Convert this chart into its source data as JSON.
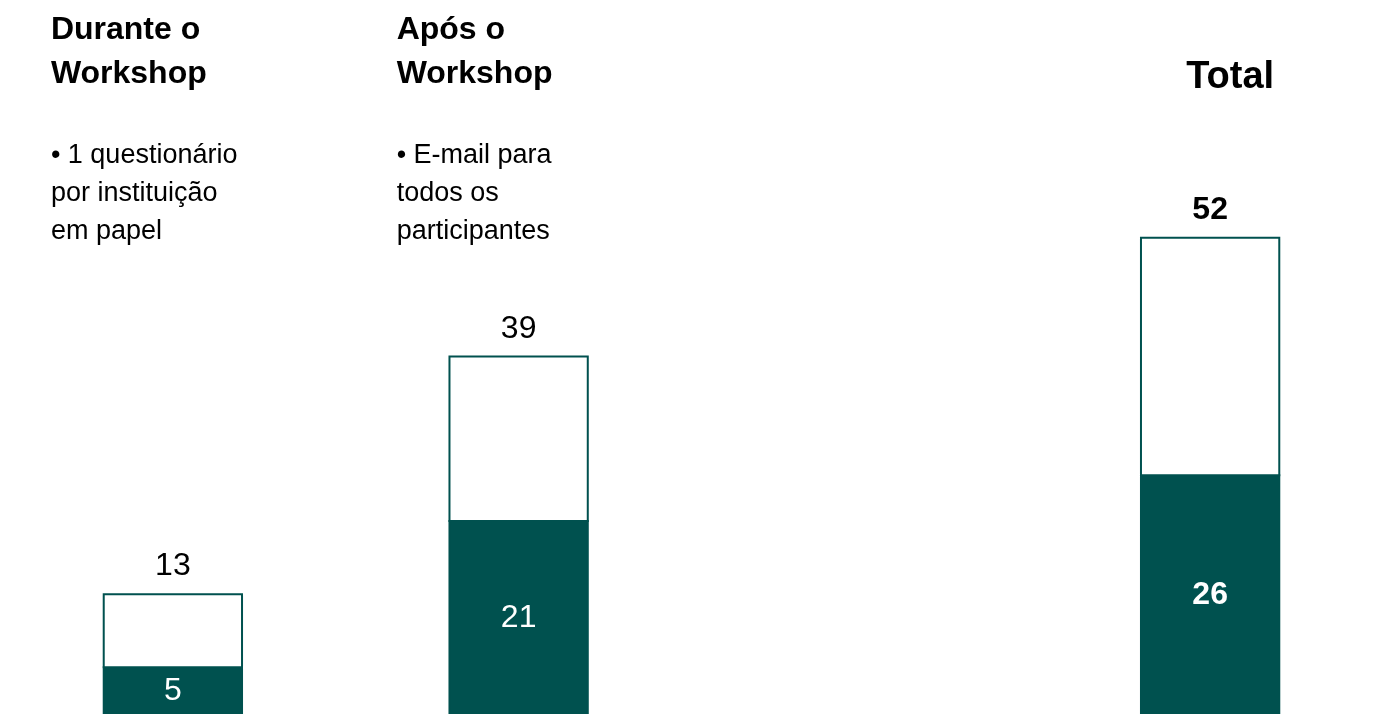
{
  "chart_data": {
    "type": "bar",
    "stacked": true,
    "categories": [
      "Durante o\nWorkshop",
      "Após o\nWorkshop",
      null,
      "Total"
    ],
    "series": [
      {
        "color": "#00514f",
        "values": [
          5,
          21,
          null,
          26
        ],
        "value_labels": [
          "5",
          "21",
          null,
          "26"
        ]
      },
      {
        "color": "#ffffff",
        "values": [
          8,
          18,
          null,
          26
        ]
      }
    ],
    "totals": [
      "13",
      "39",
      null,
      "52"
    ],
    "annotations": [
      "•  1 questionário\n    por instituição\n    em papel",
      "•  E-mail para\n    todos os\n    participantes"
    ]
  }
}
